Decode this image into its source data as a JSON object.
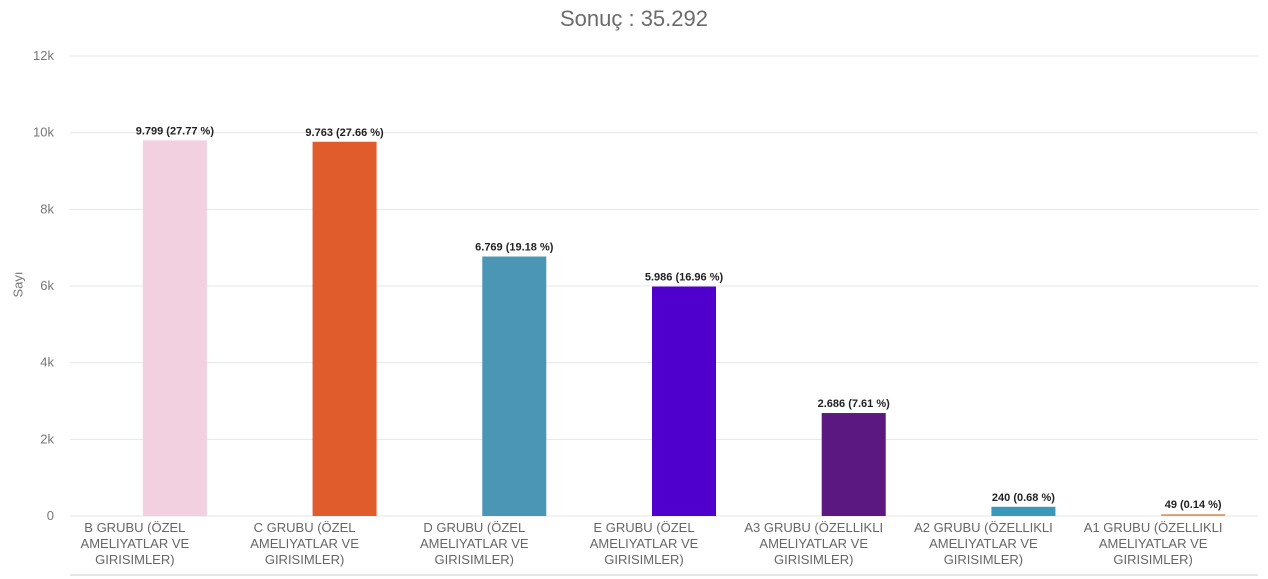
{
  "chart_data": {
    "type": "bar",
    "title": "Sonuç : 35.292",
    "xlabel": "",
    "ylabel": "Sayı",
    "ylim": [
      0,
      12000
    ],
    "yticks": [
      0,
      2000,
      4000,
      6000,
      8000,
      10000,
      12000
    ],
    "ytick_labels": [
      "0",
      "2k",
      "4k",
      "6k",
      "8k",
      "10k",
      "12k"
    ],
    "grid": true,
    "legend": "none",
    "categories": [
      [
        "B GRUBU (ÖZEL",
        "AMELIYATLAR VE",
        "GIRISIMLER)"
      ],
      [
        "C GRUBU (ÖZEL",
        "AMELIYATLAR VE",
        "GIRISIMLER)"
      ],
      [
        "D GRUBU (ÖZEL",
        "AMELIYATLAR VE",
        "GIRISIMLER)"
      ],
      [
        "E GRUBU (ÖZEL",
        "AMELIYATLAR VE",
        "GIRISIMLER)"
      ],
      [
        "A3 GRUBU (ÖZELLIKLI",
        "AMELIYATLAR VE",
        "GIRISIMLER)"
      ],
      [
        "A2 GRUBU (ÖZELLIKLI",
        "AMELIYATLAR VE",
        "GIRISIMLER)"
      ],
      [
        "A1 GRUBU (ÖZELLIKLI",
        "AMELIYATLAR VE",
        "GIRISIMLER)"
      ]
    ],
    "values": [
      9799,
      9763,
      6769,
      5986,
      2686,
      240,
      49
    ],
    "data_labels": [
      "9.799 (27.77 %)",
      "9.763 (27.66 %)",
      "6.769 (19.18 %)",
      "5.986 (16.96 %)",
      "2.686 (7.61 %)",
      "240 (0.68 %)",
      "49 (0.14 %)"
    ],
    "colors": [
      "#f2d0df",
      "#e05c2d",
      "#4a96b4",
      "#5000cc",
      "#5a1880",
      "#3a98b8",
      "#d9a06a"
    ]
  }
}
